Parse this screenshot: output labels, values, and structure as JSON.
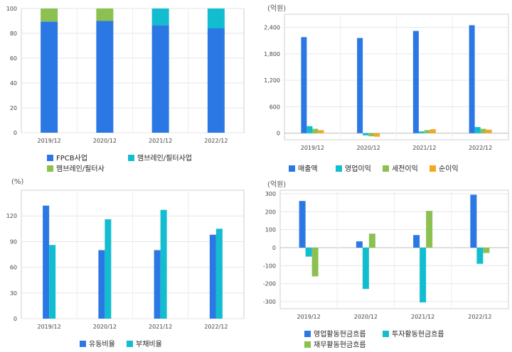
{
  "colors": {
    "blue": "#2b78e4",
    "cyan": "#13bdd0",
    "green": "#8cc152",
    "orange": "#f5a623"
  },
  "chart_data": [
    {
      "id": "c1",
      "type": "bar",
      "stacked": true,
      "unit": "",
      "categories": [
        "2019/12",
        "2020/12",
        "2021/12",
        "2022/12"
      ],
      "series": [
        {
          "name": "FPCB사업",
          "color": "#2b78e4",
          "values": [
            89.5,
            90,
            86.5,
            84
          ]
        },
        {
          "name": "맴브레인/필터사업",
          "color": "#13bdd0",
          "values": [
            0,
            0,
            13.5,
            16
          ]
        },
        {
          "name": "맴브레인/필터사",
          "color": "#8cc152",
          "values": [
            10.5,
            10,
            0,
            0
          ]
        }
      ],
      "ylim": [
        0,
        100
      ],
      "yticks": [
        0,
        20,
        40,
        60,
        80,
        100
      ],
      "ytick_labels": [
        "0",
        "20",
        "40",
        "60",
        "80",
        "100"
      ],
      "grid": true,
      "legend_position": "bottom"
    },
    {
      "id": "c2",
      "type": "bar",
      "stacked": false,
      "unit": "(억원)",
      "categories": [
        "2019/12",
        "2020/12",
        "2021/12",
        "2022/12"
      ],
      "series": [
        {
          "name": "매출액",
          "color": "#2b78e4",
          "values": [
            2180,
            2160,
            2320,
            2450
          ]
        },
        {
          "name": "영업이익",
          "color": "#13bdd0",
          "values": [
            160,
            -50,
            40,
            140
          ]
        },
        {
          "name": "세전이익",
          "color": "#8cc152",
          "values": [
            100,
            -70,
            70,
            100
          ]
        },
        {
          "name": "순이익",
          "color": "#f5a623",
          "values": [
            70,
            -80,
            90,
            80
          ]
        }
      ],
      "ylim": [
        -150,
        2700
      ],
      "yticks": [
        0,
        600,
        1200,
        1800,
        2400
      ],
      "ytick_labels": [
        "0",
        "600",
        "1,200",
        "1,800",
        "2,400"
      ],
      "grid": true,
      "legend_position": "bottom"
    },
    {
      "id": "c3",
      "type": "bar",
      "stacked": false,
      "unit": "(%)",
      "categories": [
        "2019/12",
        "2020/12",
        "2021/12",
        "2022/12"
      ],
      "series": [
        {
          "name": "유동비율",
          "color": "#2b78e4",
          "values": [
            132,
            80,
            80,
            98
          ]
        },
        {
          "name": "부채비율",
          "color": "#13bdd0",
          "values": [
            86,
            116,
            127,
            105
          ]
        }
      ],
      "ylim": [
        0,
        150
      ],
      "yticks": [
        0,
        30,
        60,
        90,
        120
      ],
      "ytick_labels": [
        "0",
        "30",
        "60",
        "90",
        "120"
      ],
      "grid": true,
      "legend_position": "bottom"
    },
    {
      "id": "c4",
      "type": "bar",
      "stacked": false,
      "unit": "(억원)",
      "categories": [
        "2019/12",
        "2020/12",
        "2021/12",
        "2022/12"
      ],
      "series": [
        {
          "name": "영업활동현금흐름",
          "color": "#2b78e4",
          "values": [
            260,
            35,
            70,
            295
          ]
        },
        {
          "name": "투자활동현금흐름",
          "color": "#13bdd0",
          "values": [
            -50,
            -230,
            -305,
            -90
          ]
        },
        {
          "name": "재무활동현금흐름",
          "color": "#8cc152",
          "values": [
            -160,
            78,
            205,
            -30
          ]
        }
      ],
      "ylim": [
        -340,
        320
      ],
      "yticks": [
        -300,
        -200,
        -100,
        0,
        100,
        200,
        300
      ],
      "ytick_labels": [
        "-300",
        "-200",
        "-100",
        "0",
        "100",
        "200",
        "300"
      ],
      "grid": true,
      "legend_position": "bottom"
    }
  ]
}
